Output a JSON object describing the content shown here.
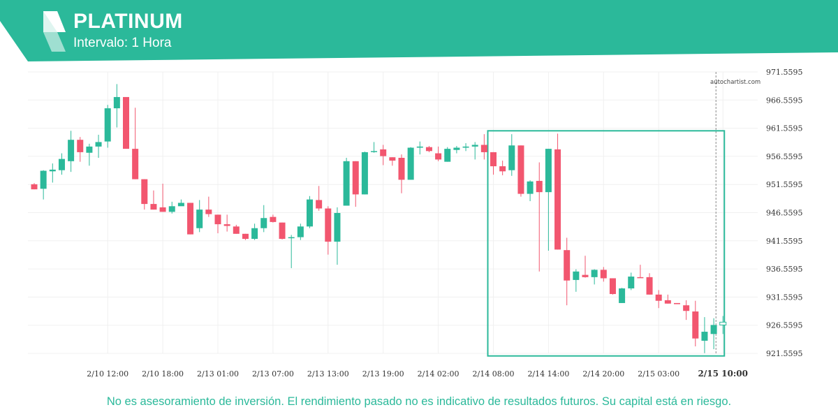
{
  "header": {
    "title": "PLATINUM",
    "subtitle": "Intervalo: 1 Hora"
  },
  "colors": {
    "brand": "#2bb99a",
    "bull": "#2bb99a",
    "bear": "#f2566f"
  },
  "icons": {
    "logo": "autochartist-logo-icon"
  },
  "watermark": "autochartist.com",
  "disclaimer": "No es asesoramiento de inversión. El rendimiento pasado no es indicativo de resultados futuros. Su capital está en riesgo.",
  "chart_data": {
    "type": "candlestick",
    "ylim": [
      921.5595,
      971.5595
    ],
    "y_ticks": [
      "971.5595",
      "966.5595",
      "961.5595",
      "956.5595",
      "951.5595",
      "946.5595",
      "941.5595",
      "936.5595",
      "931.5595",
      "926.5595",
      "921.5595"
    ],
    "x_ticks": [
      {
        "label": "2/10 12:00",
        "index": 8
      },
      {
        "label": "2/10 18:00",
        "index": 14
      },
      {
        "label": "2/13 01:00",
        "index": 20
      },
      {
        "label": "2/13 07:00",
        "index": 26
      },
      {
        "label": "2/13 13:00",
        "index": 32
      },
      {
        "label": "2/13 19:00",
        "index": 38
      },
      {
        "label": "2/14 02:00",
        "index": 44
      },
      {
        "label": "2/14 08:00",
        "index": 50
      },
      {
        "label": "2/14 14:00",
        "index": 56
      },
      {
        "label": "2/14 20:00",
        "index": 62
      },
      {
        "label": "2/15 03:00",
        "index": 68
      },
      {
        "label": "2/15 10:00",
        "index": 75,
        "current": true
      }
    ],
    "candles": [
      {
        "o": 951.6,
        "h": 951.8,
        "l": 950.7,
        "c": 950.7
      },
      {
        "o": 950.8,
        "h": 954.1,
        "l": 948.9,
        "c": 954.0
      },
      {
        "o": 953.9,
        "h": 955.3,
        "l": 951.9,
        "c": 954.2
      },
      {
        "o": 954.1,
        "h": 957.1,
        "l": 953.3,
        "c": 956.1
      },
      {
        "o": 955.7,
        "h": 961.1,
        "l": 953.8,
        "c": 959.5
      },
      {
        "o": 959.5,
        "h": 960.0,
        "l": 955.6,
        "c": 957.3
      },
      {
        "o": 957.2,
        "h": 958.8,
        "l": 954.9,
        "c": 958.3
      },
      {
        "o": 958.3,
        "h": 960.4,
        "l": 956.3,
        "c": 959.1
      },
      {
        "o": 959.2,
        "h": 965.7,
        "l": 958.1,
        "c": 965.1
      },
      {
        "o": 965.1,
        "h": 969.4,
        "l": 961.7,
        "c": 967.1
      },
      {
        "o": 967.1,
        "h": 967.1,
        "l": 958.1,
        "c": 957.9
      },
      {
        "o": 957.9,
        "h": 965.2,
        "l": 952.5,
        "c": 952.5
      },
      {
        "o": 952.5,
        "h": 952.5,
        "l": 947.1,
        "c": 948.1
      },
      {
        "o": 948.1,
        "h": 950.5,
        "l": 947.1,
        "c": 947.1
      },
      {
        "o": 947.5,
        "h": 951.7,
        "l": 946.7,
        "c": 946.7
      },
      {
        "o": 946.7,
        "h": 948.5,
        "l": 946.4,
        "c": 947.7
      },
      {
        "o": 947.7,
        "h": 948.9,
        "l": 947.8,
        "c": 948.3
      },
      {
        "o": 948.3,
        "h": 948.3,
        "l": 942.7,
        "c": 942.7
      },
      {
        "o": 943.8,
        "h": 948.8,
        "l": 943.1,
        "c": 947.1
      },
      {
        "o": 947.1,
        "h": 949.4,
        "l": 945.8,
        "c": 946.3
      },
      {
        "o": 946.2,
        "h": 946.2,
        "l": 942.9,
        "c": 944.5
      },
      {
        "o": 944.5,
        "h": 946.2,
        "l": 943.2,
        "c": 944.2
      },
      {
        "o": 944.1,
        "h": 944.4,
        "l": 942.8,
        "c": 942.8
      },
      {
        "o": 942.8,
        "h": 942.8,
        "l": 941.7,
        "c": 941.9
      },
      {
        "o": 941.9,
        "h": 944.6,
        "l": 941.7,
        "c": 943.8
      },
      {
        "o": 943.8,
        "h": 947.9,
        "l": 943.1,
        "c": 945.6
      },
      {
        "o": 945.8,
        "h": 946.2,
        "l": 944.8,
        "c": 944.9
      },
      {
        "o": 944.8,
        "h": 944.8,
        "l": 941.8,
        "c": 941.9
      },
      {
        "o": 942.1,
        "h": 942.6,
        "l": 936.7,
        "c": 942.2
      },
      {
        "o": 942.2,
        "h": 944.6,
        "l": 941.7,
        "c": 944.1
      },
      {
        "o": 944.1,
        "h": 949.5,
        "l": 943.8,
        "c": 948.9
      },
      {
        "o": 948.8,
        "h": 951.3,
        "l": 946.9,
        "c": 947.3
      },
      {
        "o": 947.3,
        "h": 947.7,
        "l": 939.1,
        "c": 941.4
      },
      {
        "o": 941.4,
        "h": 947.5,
        "l": 937.3,
        "c": 946.5
      },
      {
        "o": 947.8,
        "h": 956.3,
        "l": 947.8,
        "c": 955.7
      },
      {
        "o": 955.7,
        "h": 955.7,
        "l": 947.6,
        "c": 949.8
      },
      {
        "o": 949.8,
        "h": 957.4,
        "l": 949.8,
        "c": 957.3
      },
      {
        "o": 957.4,
        "h": 959.1,
        "l": 957.2,
        "c": 957.5
      },
      {
        "o": 957.8,
        "h": 958.6,
        "l": 955.0,
        "c": 956.6
      },
      {
        "o": 956.4,
        "h": 956.4,
        "l": 954.9,
        "c": 955.8
      },
      {
        "o": 956.3,
        "h": 956.9,
        "l": 950.0,
        "c": 952.4
      },
      {
        "o": 952.4,
        "h": 958.2,
        "l": 952.4,
        "c": 958.1
      },
      {
        "o": 958.1,
        "h": 959.2,
        "l": 956.9,
        "c": 958.3
      },
      {
        "o": 958.2,
        "h": 958.4,
        "l": 957.3,
        "c": 957.5
      },
      {
        "o": 957.1,
        "h": 958.3,
        "l": 955.7,
        "c": 956.0
      },
      {
        "o": 955.6,
        "h": 958.2,
        "l": 955.6,
        "c": 957.9
      },
      {
        "o": 957.7,
        "h": 958.4,
        "l": 957.1,
        "c": 958.1
      },
      {
        "o": 958.1,
        "h": 958.9,
        "l": 957.5,
        "c": 958.3
      },
      {
        "o": 958.3,
        "h": 959.1,
        "l": 956.0,
        "c": 958.6
      },
      {
        "o": 958.6,
        "h": 960.5,
        "l": 956.0,
        "c": 957.3
      },
      {
        "o": 957.3,
        "h": 957.3,
        "l": 953.3,
        "c": 954.8
      },
      {
        "o": 954.8,
        "h": 955.8,
        "l": 953.2,
        "c": 953.9
      },
      {
        "o": 954.1,
        "h": 960.5,
        "l": 953.1,
        "c": 958.5
      },
      {
        "o": 958.5,
        "h": 958.5,
        "l": 949.4,
        "c": 949.9
      },
      {
        "o": 949.9,
        "h": 952.3,
        "l": 948.6,
        "c": 952.1
      },
      {
        "o": 952.2,
        "h": 955.5,
        "l": 936.1,
        "c": 950.2
      },
      {
        "o": 950.2,
        "h": 957.9,
        "l": 939.8,
        "c": 957.9
      },
      {
        "o": 957.8,
        "h": 960.6,
        "l": 940.0,
        "c": 940.0
      },
      {
        "o": 939.9,
        "h": 942.1,
        "l": 930.1,
        "c": 934.5
      },
      {
        "o": 934.6,
        "h": 936.5,
        "l": 932.5,
        "c": 936.1
      },
      {
        "o": 935.5,
        "h": 938.9,
        "l": 935.0,
        "c": 935.1
      },
      {
        "o": 935.1,
        "h": 936.5,
        "l": 933.8,
        "c": 936.4
      },
      {
        "o": 936.4,
        "h": 936.9,
        "l": 934.3,
        "c": 934.9
      },
      {
        "o": 934.9,
        "h": 934.9,
        "l": 932.0,
        "c": 932.1
      },
      {
        "o": 930.5,
        "h": 933.2,
        "l": 930.5,
        "c": 933.1
      },
      {
        "o": 933.1,
        "h": 935.9,
        "l": 932.8,
        "c": 935.2
      },
      {
        "o": 935.1,
        "h": 937.3,
        "l": 935.0,
        "c": 935.0
      },
      {
        "o": 935.1,
        "h": 935.8,
        "l": 932.0,
        "c": 932.0
      },
      {
        "o": 932.0,
        "h": 932.8,
        "l": 929.6,
        "c": 930.9
      },
      {
        "o": 931.0,
        "h": 932.0,
        "l": 930.4,
        "c": 930.4
      },
      {
        "o": 930.5,
        "h": 930.5,
        "l": 930.3,
        "c": 930.3
      },
      {
        "o": 930.1,
        "h": 931.0,
        "l": 927.5,
        "c": 929.1
      },
      {
        "o": 929.0,
        "h": 930.9,
        "l": 922.8,
        "c": 924.2
      },
      {
        "o": 923.8,
        "h": 928.0,
        "l": 921.6,
        "c": 925.4
      },
      {
        "o": 925.0,
        "h": 927.8,
        "l": 922.3,
        "c": 926.6
      },
      {
        "o": 926.6,
        "h": 928.2,
        "l": 925.0,
        "c": 927.1
      }
    ],
    "pattern_box": {
      "from_index": 50,
      "to_index": 75,
      "low": 921.1,
      "high": 961.1
    },
    "current_index": 75
  }
}
